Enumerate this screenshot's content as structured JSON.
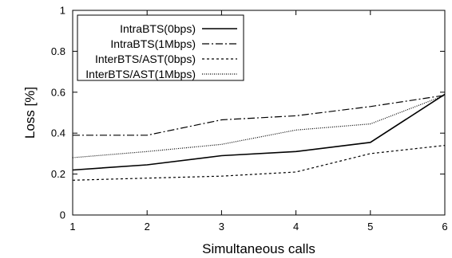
{
  "chart_data": {
    "type": "line",
    "title": "",
    "xlabel": "Simultaneous calls",
    "ylabel": "Loss [%]",
    "x": [
      1,
      2,
      3,
      4,
      5,
      6
    ],
    "xlim": [
      1,
      6
    ],
    "ylim": [
      0,
      1
    ],
    "xticks": [
      "1",
      "2",
      "3",
      "4",
      "5",
      "6"
    ],
    "yticks": [
      "0",
      "0.2",
      "0.4",
      "0.6",
      "0.8",
      "1"
    ],
    "grid": false,
    "legend_position": "top-left",
    "series": [
      {
        "name": "IntraBTS(0bps)",
        "style": "solid",
        "color": "#000000",
        "values": [
          0.22,
          0.245,
          0.29,
          0.31,
          0.355,
          0.59
        ]
      },
      {
        "name": "IntraBTS(1Mbps)",
        "style": "dash-dot",
        "color": "#000000",
        "values": [
          0.39,
          0.39,
          0.465,
          0.485,
          0.53,
          0.585
        ]
      },
      {
        "name": "InterBTS/AST(0bps)",
        "style": "dashed",
        "color": "#000000",
        "values": [
          0.17,
          0.18,
          0.19,
          0.21,
          0.3,
          0.34
        ]
      },
      {
        "name": "InterBTS/AST(1Mbps)",
        "style": "dotted",
        "color": "#000000",
        "values": [
          0.28,
          0.31,
          0.345,
          0.415,
          0.445,
          0.585
        ]
      }
    ]
  }
}
